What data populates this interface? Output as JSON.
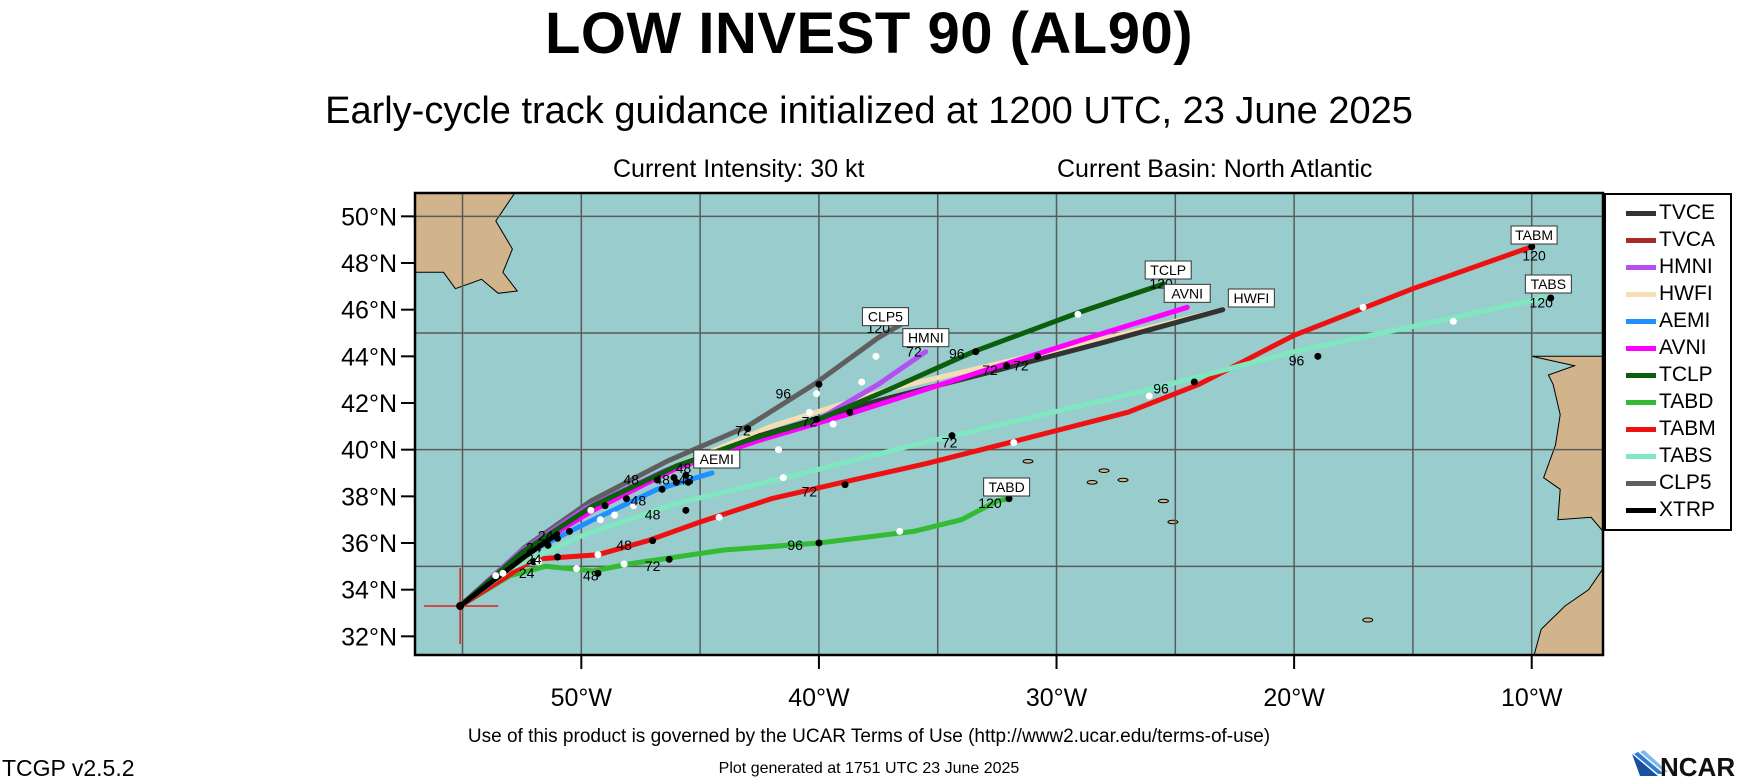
{
  "title": "LOW INVEST 90 (AL90)",
  "subtitle": "Early-cycle track guidance initialized at 1200 UTC, 23 June 2025",
  "current_intensity": "Current Intensity: 30 kt",
  "current_basin": "Current Basin: North Atlantic",
  "footer_terms": "Use of this product is governed by the UCAR Terms of Use (http://www2.ucar.edu/terms-of-use)",
  "footer_generated": "Plot generated at 1751 UTC   23 June 2025",
  "version": "TCGP v2.5.2",
  "logo_text": "NCAR",
  "colors": {
    "ocean": "#99cccc",
    "land": "#d2b48c",
    "grid": "#5a5a5a"
  },
  "map": {
    "lon_range": [
      -57,
      -7
    ],
    "lat_range": [
      31.2,
      51
    ],
    "lat_ticks": [
      {
        "lat": 32,
        "label": "32°N"
      },
      {
        "lat": 34,
        "label": "34°N"
      },
      {
        "lat": 36,
        "label": "36°N"
      },
      {
        "lat": 38,
        "label": "38°N"
      },
      {
        "lat": 40,
        "label": "40°N"
      },
      {
        "lat": 42,
        "label": "42°N"
      },
      {
        "lat": 44,
        "label": "44°N"
      },
      {
        "lat": 46,
        "label": "46°N"
      },
      {
        "lat": 48,
        "label": "48°N"
      },
      {
        "lat": 50,
        "label": "50°N"
      }
    ],
    "lon_ticks": [
      {
        "lon": -50,
        "label": "50°W"
      },
      {
        "lon": -40,
        "label": "40°W"
      },
      {
        "lon": -30,
        "label": "30°W"
      },
      {
        "lon": -20,
        "label": "20°W"
      },
      {
        "lon": -10,
        "label": "10°W"
      }
    ],
    "grid_lons": [
      -55,
      -50,
      -45,
      -40,
      -35,
      -30,
      -25,
      -20,
      -15,
      -10
    ],
    "grid_lats": [
      35,
      40,
      45,
      50
    ],
    "storm_position": {
      "lon": -55.1,
      "lat": 33.3
    }
  },
  "legend": [
    {
      "name": "TVCE",
      "color": "#333333"
    },
    {
      "name": "TVCA",
      "color": "#a52a2a"
    },
    {
      "name": "HMNI",
      "color": "#b44ef5"
    },
    {
      "name": "HWFI",
      "color": "#f5deb3"
    },
    {
      "name": "AEMI",
      "color": "#1e90ff"
    },
    {
      "name": "AVNI",
      "color": "#ff00ff"
    },
    {
      "name": "TCLP",
      "color": "#0b5e0b"
    },
    {
      "name": "TABD",
      "color": "#33bb33"
    },
    {
      "name": "TABM",
      "color": "#ee1111"
    },
    {
      "name": "TABS",
      "color": "#80e8c0"
    },
    {
      "name": "CLP5",
      "color": "#5f5f5f"
    },
    {
      "name": "XTRP",
      "color": "#000000"
    }
  ],
  "tracks": [
    {
      "name": "HWFI",
      "color": "#f5deb3",
      "label": "HWFI",
      "points": [
        [
          -55.1,
          33.3
        ],
        [
          -52.5,
          35.6
        ],
        [
          -49.5,
          37.6
        ],
        [
          -46,
          39.3
        ],
        [
          -42,
          41
        ],
        [
          -37,
          42.6
        ],
        [
          -32,
          43.8
        ],
        [
          -27,
          45
        ],
        [
          -23,
          46
        ]
      ],
      "label_at": [
        -21.8,
        46.2
      ]
    },
    {
      "name": "TVCE",
      "color": "#333333",
      "label": "",
      "points": [
        [
          -55.1,
          33.3
        ],
        [
          -52.6,
          35.5
        ],
        [
          -49.7,
          37.4
        ],
        [
          -46.3,
          39.1
        ],
        [
          -42.5,
          40.6
        ],
        [
          -37.5,
          42.1
        ],
        [
          -32.5,
          43.4
        ],
        [
          -28,
          44.6
        ],
        [
          -23,
          46
        ]
      ],
      "label_at": null
    },
    {
      "name": "TVCA",
      "color": "#a52a2a",
      "label": "",
      "points": [
        [
          -55.1,
          33.3
        ],
        [
          -52.7,
          35.4
        ],
        [
          -50,
          37.1
        ]
      ],
      "label_at": null
    },
    {
      "name": "CLP5",
      "color": "#5f5f5f",
      "label": "CLP5",
      "points": [
        [
          -55.1,
          33.3
        ],
        [
          -52.4,
          35.8
        ],
        [
          -49.6,
          37.8
        ],
        [
          -46.4,
          39.5
        ],
        [
          -43,
          41
        ],
        [
          -40.2,
          42.8
        ],
        [
          -37.5,
          44.8
        ],
        [
          -36.5,
          45.4
        ]
      ],
      "label_at": [
        -37.2,
        45.4
      ]
    },
    {
      "name": "HMNI",
      "color": "#b44ef5",
      "label": "HMNI",
      "points": [
        [
          -55.1,
          33.3
        ],
        [
          -52.6,
          35.6
        ],
        [
          -49.8,
          37.5
        ],
        [
          -46.5,
          39.1
        ],
        [
          -43.5,
          40.2
        ],
        [
          -40,
          41.3
        ],
        [
          -37.5,
          42.8
        ],
        [
          -35.5,
          44.2
        ]
      ],
      "label_at": [
        -35.5,
        44.5
      ]
    },
    {
      "name": "AEMI",
      "color": "#1e90ff",
      "label": "AEMI",
      "points": [
        [
          -55.1,
          33.3
        ],
        [
          -52.6,
          35.4
        ],
        [
          -49.5,
          37
        ],
        [
          -46.8,
          38.3
        ],
        [
          -44.5,
          39
        ]
      ],
      "label_at": [
        -44.3,
        39.3
      ]
    },
    {
      "name": "AVNI",
      "color": "#ff00ff",
      "label": "AVNI",
      "points": [
        [
          -55.1,
          33.3
        ],
        [
          -52.6,
          35.5
        ],
        [
          -49.5,
          37.4
        ],
        [
          -46,
          39.2
        ],
        [
          -42.5,
          40.4
        ],
        [
          -38.5,
          41.6
        ],
        [
          -33,
          43.4
        ],
        [
          -28,
          45
        ],
        [
          -24.5,
          46.1
        ]
      ],
      "label_at": [
        -24.5,
        46.4
      ]
    },
    {
      "name": "TCLP",
      "color": "#0b5e0b",
      "label": "TCLP",
      "points": [
        [
          -55.1,
          33.3
        ],
        [
          -52.5,
          35.6
        ],
        [
          -49.5,
          37.6
        ],
        [
          -46,
          39.3
        ],
        [
          -43,
          40.4
        ],
        [
          -40,
          41.3
        ],
        [
          -37,
          42.6
        ],
        [
          -33.5,
          44.2
        ],
        [
          -29,
          45.9
        ],
        [
          -25.5,
          47.1
        ]
      ],
      "label_at": [
        -25.3,
        47.4
      ]
    },
    {
      "name": "TABD",
      "color": "#33bb33",
      "label": "TABD",
      "points": [
        [
          -55.1,
          33.3
        ],
        [
          -53,
          34.6
        ],
        [
          -51.5,
          35
        ],
        [
          -49.5,
          34.8
        ],
        [
          -48,
          35.1
        ],
        [
          -46,
          35.4
        ],
        [
          -44,
          35.7
        ],
        [
          -40,
          36
        ],
        [
          -36,
          36.5
        ],
        [
          -34,
          37
        ],
        [
          -32.5,
          37.8
        ],
        [
          -32,
          37.9
        ]
      ],
      "label_at": [
        -32.1,
        38.1
      ]
    },
    {
      "name": "TABM",
      "color": "#ee1111",
      "label": "TABM",
      "points": [
        [
          -55.1,
          33.3
        ],
        [
          -52,
          35.3
        ],
        [
          -49.3,
          35.5
        ],
        [
          -47.2,
          36.1
        ],
        [
          -45,
          36.9
        ],
        [
          -42,
          37.9
        ],
        [
          -39,
          38.6
        ],
        [
          -35.5,
          39.4
        ],
        [
          -32,
          40.3
        ],
        [
          -27,
          41.6
        ],
        [
          -24,
          42.8
        ],
        [
          -20,
          44.9
        ],
        [
          -15,
          46.9
        ],
        [
          -10,
          48.7
        ]
      ],
      "label_at": [
        -9.9,
        48.9
      ]
    },
    {
      "name": "TABS",
      "color": "#80e8c0",
      "label": "TABS",
      "points": [
        [
          -55.1,
          33.3
        ],
        [
          -53,
          34.9
        ],
        [
          -50,
          36.3
        ],
        [
          -46,
          37.7
        ],
        [
          -41,
          38.9
        ],
        [
          -36,
          40.2
        ],
        [
          -31,
          41.4
        ],
        [
          -26,
          42.6
        ],
        [
          -20,
          44.2
        ],
        [
          -14,
          45.5
        ],
        [
          -9.5,
          46.5
        ]
      ],
      "label_at": [
        -9.3,
        46.8
      ]
    },
    {
      "name": "XTRP",
      "color": "#000000",
      "label": "",
      "points": [
        [
          -55.1,
          33.3
        ],
        [
          -52.4,
          35.4
        ],
        [
          -51,
          36.4
        ]
      ],
      "label_at": null
    }
  ],
  "hour_labels": [
    {
      "text": "120",
      "lon": -37.5,
      "lat": 45.0
    },
    {
      "text": "72",
      "lon": -36,
      "lat": 44.0
    },
    {
      "text": "120",
      "lon": -25.6,
      "lat": 46.9
    },
    {
      "text": "96",
      "lon": -34.2,
      "lat": 43.9
    },
    {
      "text": "72",
      "lon": -32.8,
      "lat": 43.2
    },
    {
      "text": "72",
      "lon": -31.5,
      "lat": 43.4
    },
    {
      "text": "96",
      "lon": -41.5,
      "lat": 42.2
    },
    {
      "text": "72",
      "lon": -43.2,
      "lat": 40.6
    },
    {
      "text": "72",
      "lon": -40.4,
      "lat": 41.0
    },
    {
      "text": "96",
      "lon": -25.6,
      "lat": 42.4
    },
    {
      "text": "96",
      "lon": -19.9,
      "lat": 43.6
    },
    {
      "text": "72",
      "lon": -34.5,
      "lat": 40.1
    },
    {
      "text": "72",
      "lon": -40.4,
      "lat": 38.0
    },
    {
      "text": "120",
      "lon": -9.9,
      "lat": 48.1
    },
    {
      "text": "120",
      "lon": -9.6,
      "lat": 46.1
    },
    {
      "text": "120",
      "lon": -32.8,
      "lat": 37.5
    },
    {
      "text": "48",
      "lon": -45.7,
      "lat": 39.0
    },
    {
      "text": "48",
      "lon": -47.9,
      "lat": 38.5
    },
    {
      "text": "48",
      "lon": -46.6,
      "lat": 38.5
    },
    {
      "text": "48",
      "lon": -45.6,
      "lat": 38.5
    },
    {
      "text": "48",
      "lon": -47.6,
      "lat": 37.6
    },
    {
      "text": "48",
      "lon": -47.0,
      "lat": 37.0
    },
    {
      "text": "48",
      "lon": -48.2,
      "lat": 35.7
    },
    {
      "text": "48",
      "lon": -49.6,
      "lat": 34.4
    },
    {
      "text": "72",
      "lon": -47.0,
      "lat": 34.8
    },
    {
      "text": "96",
      "lon": -41.0,
      "lat": 35.7
    },
    {
      "text": "24",
      "lon": -51.5,
      "lat": 36.1
    },
    {
      "text": "24",
      "lon": -52.0,
      "lat": 35.6
    },
    {
      "text": "24",
      "lon": -52.0,
      "lat": 35.1
    },
    {
      "text": "24",
      "lon": -52.3,
      "lat": 34.5
    }
  ],
  "black_dots": [
    [
      -51.4,
      35.9
    ],
    [
      -51.0,
      36.2
    ],
    [
      -50.5,
      36.5
    ],
    [
      -49.0,
      37.6
    ],
    [
      -48.1,
      37.9
    ],
    [
      -46.6,
      38.3
    ],
    [
      -46.0,
      38.6
    ],
    [
      -45.6,
      38.9
    ],
    [
      -45.5,
      38.6
    ],
    [
      -46.1,
      38.8
    ],
    [
      -46.8,
      38.7
    ],
    [
      -44.7,
      39.8
    ],
    [
      -43,
      40.9
    ],
    [
      -40.0,
      42.8
    ],
    [
      -40.1,
      41.3
    ],
    [
      -38.7,
      41.6
    ],
    [
      -33.4,
      44.2
    ],
    [
      -32.1,
      43.6
    ],
    [
      -30.8,
      44.0
    ],
    [
      -34.4,
      40.6
    ],
    [
      -38.9,
      38.5
    ],
    [
      -45.6,
      37.4
    ],
    [
      -47.0,
      36.1
    ],
    [
      -46.3,
      35.3
    ],
    [
      -49.3,
      34.7
    ],
    [
      -40.0,
      36.0
    ],
    [
      -24.2,
      42.9
    ],
    [
      -19.0,
      44.0
    ],
    [
      -9.2,
      46.5
    ],
    [
      -10.0,
      48.7
    ],
    [
      -32.0,
      37.9
    ],
    [
      -51.0,
      35.4
    ],
    [
      -52.0,
      35.2
    ]
  ],
  "white_dots": [
    [
      -53.6,
      34.6
    ],
    [
      -53.3,
      34.7
    ],
    [
      -49.6,
      37.4
    ],
    [
      -49.2,
      37.0
    ],
    [
      -48.6,
      37.2
    ],
    [
      -47.8,
      37.6
    ],
    [
      -48.2,
      35.1
    ],
    [
      -50.2,
      34.9
    ],
    [
      -44.2,
      37.1
    ],
    [
      -41.5,
      38.8
    ],
    [
      -39.4,
      41.1
    ],
    [
      -41.7,
      40.0
    ],
    [
      -40.4,
      41.6
    ],
    [
      -38.2,
      42.9
    ],
    [
      -37.6,
      44.0
    ],
    [
      -29.1,
      45.8
    ],
    [
      -26.1,
      42.3
    ],
    [
      -17.1,
      46.1
    ],
    [
      -13.3,
      45.5
    ],
    [
      -31.8,
      40.3
    ],
    [
      -49.3,
      35.5
    ],
    [
      -51.8,
      35.2
    ],
    [
      -36.6,
      36.5
    ],
    [
      -40.1,
      42.4
    ]
  ]
}
